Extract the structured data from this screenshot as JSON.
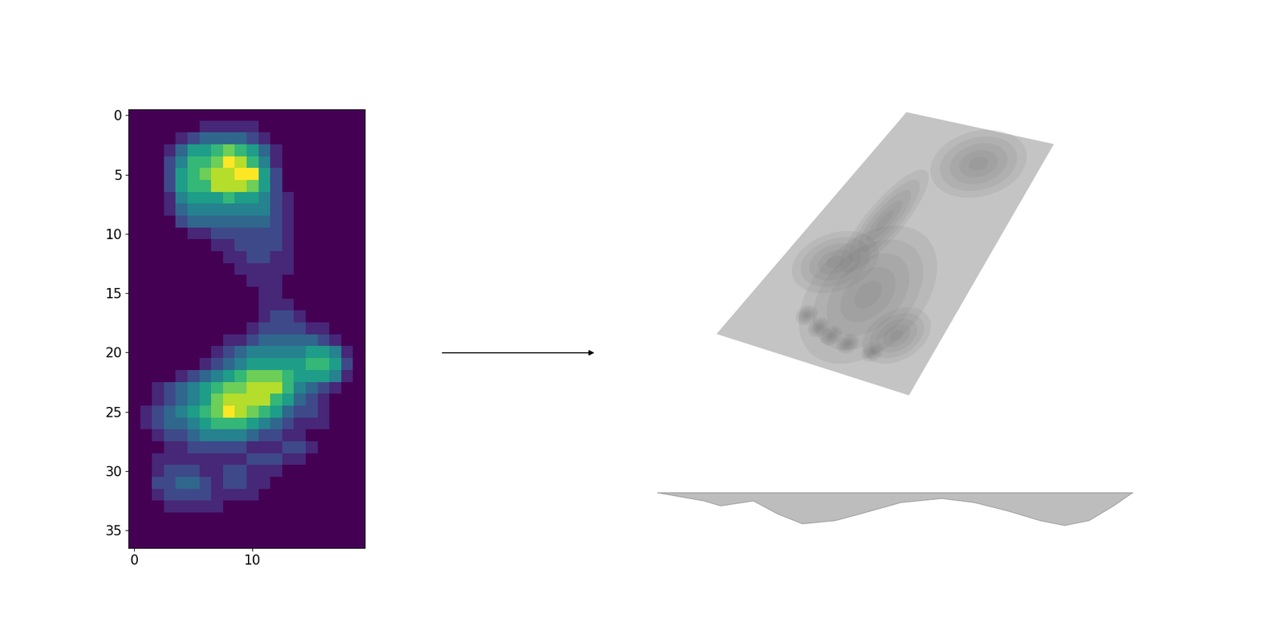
{
  "chart_data": {
    "type": "heatmap",
    "cells": [
      [
        0,
        0,
        0,
        0,
        0,
        0,
        0,
        0,
        0,
        0,
        0,
        0,
        0,
        0,
        0,
        0,
        0,
        0,
        0,
        0
      ],
      [
        0,
        0,
        0,
        0,
        0,
        0,
        1,
        1,
        1,
        1,
        1,
        0,
        0,
        0,
        0,
        0,
        0,
        0,
        0,
        0
      ],
      [
        0,
        0,
        0,
        0,
        1,
        2,
        3,
        3,
        3,
        3,
        2,
        1,
        0,
        0,
        0,
        0,
        0,
        0,
        0,
        0
      ],
      [
        0,
        0,
        0,
        1,
        3,
        5,
        5,
        6,
        7,
        6,
        5,
        3,
        1,
        0,
        0,
        0,
        0,
        0,
        0,
        0
      ],
      [
        0,
        0,
        0,
        2,
        4,
        6,
        6,
        7,
        9,
        8,
        6,
        4,
        1,
        0,
        0,
        0,
        0,
        0,
        0,
        0
      ],
      [
        0,
        0,
        0,
        2,
        5,
        6,
        7,
        8,
        8,
        9,
        9,
        5,
        2,
        0,
        0,
        0,
        0,
        0,
        0,
        0
      ],
      [
        0,
        0,
        0,
        2,
        5,
        6,
        6,
        8,
        8,
        8,
        7,
        5,
        2,
        0,
        0,
        0,
        0,
        0,
        0,
        0
      ],
      [
        0,
        0,
        0,
        1,
        4,
        5,
        5,
        5,
        6,
        5,
        5,
        4,
        2,
        1,
        0,
        0,
        0,
        0,
        0,
        0
      ],
      [
        0,
        0,
        0,
        1,
        3,
        4,
        4,
        4,
        4,
        4,
        4,
        4,
        2,
        1,
        0,
        0,
        0,
        0,
        0,
        0
      ],
      [
        0,
        0,
        0,
        0,
        2,
        3,
        3,
        3,
        3,
        3,
        3,
        3,
        2,
        1,
        0,
        0,
        0,
        0,
        0,
        0
      ],
      [
        0,
        0,
        0,
        0,
        0,
        1,
        1,
        2,
        2,
        2,
        2,
        2,
        2,
        1,
        0,
        0,
        0,
        0,
        0,
        0
      ],
      [
        0,
        0,
        0,
        0,
        0,
        0,
        0,
        1,
        1,
        2,
        2,
        2,
        2,
        1,
        0,
        0,
        0,
        0,
        0,
        0
      ],
      [
        0,
        0,
        0,
        0,
        0,
        0,
        0,
        0,
        1,
        1,
        2,
        2,
        1,
        1,
        0,
        0,
        0,
        0,
        0,
        0
      ],
      [
        0,
        0,
        0,
        0,
        0,
        0,
        0,
        0,
        0,
        1,
        1,
        1,
        1,
        1,
        0,
        0,
        0,
        0,
        0,
        0
      ],
      [
        0,
        0,
        0,
        0,
        0,
        0,
        0,
        0,
        0,
        0,
        1,
        1,
        1,
        0,
        0,
        0,
        0,
        0,
        0,
        0
      ],
      [
        0,
        0,
        0,
        0,
        0,
        0,
        0,
        0,
        0,
        0,
        0,
        1,
        1,
        0,
        0,
        0,
        0,
        0,
        0,
        0
      ],
      [
        0,
        0,
        0,
        0,
        0,
        0,
        0,
        0,
        0,
        0,
        0,
        1,
        1,
        1,
        0,
        0,
        0,
        0,
        0,
        0
      ],
      [
        0,
        0,
        0,
        0,
        0,
        0,
        0,
        0,
        0,
        0,
        0,
        1,
        2,
        2,
        1,
        0,
        0,
        0,
        0,
        0
      ],
      [
        0,
        0,
        0,
        0,
        0,
        0,
        0,
        0,
        0,
        0,
        1,
        2,
        2,
        2,
        2,
        1,
        1,
        0,
        0,
        0
      ],
      [
        0,
        0,
        0,
        0,
        0,
        0,
        0,
        0,
        1,
        1,
        2,
        3,
        3,
        3,
        3,
        3,
        2,
        1,
        0,
        0
      ],
      [
        0,
        0,
        0,
        0,
        0,
        0,
        0,
        1,
        2,
        3,
        4,
        4,
        4,
        4,
        4,
        5,
        5,
        4,
        1,
        0
      ],
      [
        0,
        0,
        0,
        0,
        0,
        0,
        1,
        2,
        3,
        4,
        5,
        5,
        5,
        5,
        5,
        6,
        6,
        5,
        2,
        0
      ],
      [
        0,
        0,
        0,
        0,
        1,
        2,
        3,
        4,
        5,
        6,
        7,
        7,
        7,
        6,
        5,
        5,
        5,
        4,
        1,
        0
      ],
      [
        0,
        0,
        1,
        2,
        3,
        4,
        5,
        6,
        7,
        7,
        8,
        8,
        8,
        6,
        4,
        3,
        2,
        1,
        0,
        0
      ],
      [
        0,
        0,
        1,
        2,
        3,
        4,
        5,
        7,
        8,
        8,
        8,
        8,
        6,
        5,
        3,
        2,
        1,
        0,
        0,
        0
      ],
      [
        0,
        1,
        2,
        3,
        4,
        5,
        6,
        7,
        9,
        8,
        7,
        6,
        5,
        3,
        2,
        2,
        1,
        0,
        0,
        0
      ],
      [
        0,
        1,
        2,
        3,
        3,
        4,
        5,
        6,
        6,
        6,
        5,
        4,
        3,
        2,
        1,
        1,
        1,
        0,
        0,
        0
      ],
      [
        0,
        0,
        1,
        2,
        2,
        3,
        4,
        4,
        4,
        4,
        3,
        2,
        2,
        1,
        1,
        0,
        0,
        0,
        0,
        0
      ],
      [
        0,
        0,
        0,
        1,
        1,
        2,
        2,
        2,
        2,
        2,
        1,
        1,
        1,
        2,
        2,
        1,
        0,
        0,
        0,
        0
      ],
      [
        0,
        0,
        1,
        1,
        1,
        1,
        1,
        1,
        1,
        1,
        2,
        2,
        2,
        1,
        1,
        0,
        0,
        0,
        0,
        0
      ],
      [
        0,
        0,
        1,
        2,
        2,
        2,
        1,
        1,
        2,
        2,
        1,
        1,
        1,
        0,
        0,
        0,
        0,
        0,
        0,
        0
      ],
      [
        0,
        0,
        2,
        2,
        3,
        3,
        2,
        1,
        2,
        2,
        1,
        1,
        0,
        0,
        0,
        0,
        0,
        0,
        0,
        0
      ],
      [
        0,
        0,
        1,
        2,
        2,
        2,
        2,
        1,
        1,
        1,
        1,
        0,
        0,
        0,
        0,
        0,
        0,
        0,
        0,
        0
      ],
      [
        0,
        0,
        0,
        1,
        1,
        1,
        1,
        1,
        0,
        0,
        0,
        0,
        0,
        0,
        0,
        0,
        0,
        0,
        0,
        0
      ],
      [
        0,
        0,
        0,
        0,
        0,
        0,
        0,
        0,
        0,
        0,
        0,
        0,
        0,
        0,
        0,
        0,
        0,
        0,
        0,
        0
      ],
      [
        0,
        0,
        0,
        0,
        0,
        0,
        0,
        0,
        0,
        0,
        0,
        0,
        0,
        0,
        0,
        0,
        0,
        0,
        0,
        0
      ],
      [
        0,
        0,
        0,
        0,
        0,
        0,
        0,
        0,
        0,
        0,
        0,
        0,
        0,
        0,
        0,
        0,
        0,
        0,
        0,
        0
      ]
    ],
    "xlim": [
      -0.5,
      19.5
    ],
    "ylim": [
      36.5,
      -0.5
    ],
    "xticks": [
      0,
      10
    ],
    "yticks": [
      0,
      5,
      10,
      15,
      20,
      25,
      30,
      35
    ],
    "color_range": [
      0,
      9
    ]
  }
}
